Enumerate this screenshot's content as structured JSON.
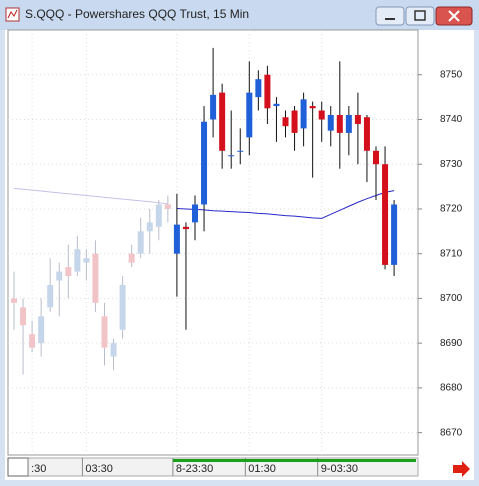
{
  "chart_data": {
    "type": "candlestick",
    "title": "S.QQQ - Powershares QQQ Trust, 15 Min",
    "categories": [
      null,
      null,
      ":30",
      null,
      null,
      null,
      null,
      null,
      "03:30",
      null,
      null,
      null,
      null,
      null,
      null,
      null,
      null,
      null,
      "8-23:30",
      null,
      null,
      null,
      null,
      null,
      null,
      null,
      "01:30",
      null,
      null,
      null,
      null,
      null,
      null,
      null,
      "9-03:30",
      null,
      null,
      null,
      null,
      null,
      null,
      null,
      null
    ],
    "ylim": [
      8665,
      8760
    ],
    "yticks": [
      8670,
      8680,
      8690,
      8700,
      8710,
      8720,
      8730,
      8740,
      8750
    ],
    "grid": true,
    "series": [
      {
        "color_up": "#c5d5ea",
        "color_down": "#f2c4c8",
        "wick_color": "#b8bccb",
        "open": [
          8700,
          8698,
          8692,
          8690,
          8698,
          8704,
          8707,
          8706,
          8708,
          8710,
          8696,
          8687,
          8693,
          8710,
          8710,
          8715,
          8716,
          8721,
          null,
          null,
          null,
          null,
          null,
          null,
          null,
          null,
          null,
          null,
          null,
          null,
          null,
          null,
          null,
          null,
          null,
          null,
          null,
          null,
          null,
          null,
          null,
          null,
          null
        ],
        "high": [
          8706,
          8700,
          8695,
          8700,
          8709,
          8708,
          8712,
          8714,
          8711,
          8713,
          8699,
          8691,
          8705,
          8712,
          8718,
          8720,
          8722,
          8723,
          null,
          null,
          null,
          null,
          null,
          null,
          null,
          null,
          null,
          null,
          null,
          null,
          null,
          null,
          null,
          null,
          null,
          null,
          null,
          null,
          null,
          null,
          null,
          null,
          null
        ],
        "low": [
          8693,
          8683,
          8688,
          8687,
          8697,
          8696,
          8700,
          8705,
          8704,
          8697,
          8685,
          8684,
          8691,
          8707,
          8709,
          8710,
          8713,
          8717,
          null,
          null,
          null,
          null,
          null,
          null,
          null,
          null,
          null,
          null,
          null,
          null,
          null,
          null,
          null,
          null,
          null,
          null,
          null,
          null,
          null,
          null,
          null,
          null,
          null
        ],
        "close": [
          8699,
          8694,
          8689,
          8696,
          8703,
          8706,
          8705,
          8711,
          8709,
          8699,
          8689,
          8690,
          8703,
          8708,
          8715,
          8717,
          8721,
          8720,
          null,
          null,
          null,
          null,
          null,
          null,
          null,
          null,
          null,
          null,
          null,
          null,
          null,
          null,
          null,
          null,
          null,
          null,
          null,
          null,
          null,
          null,
          null,
          null,
          null
        ]
      },
      {
        "color_up": "#1f5fd8",
        "color_down": "#d3101c",
        "wick_color": "#111111",
        "open": [
          null,
          null,
          null,
          null,
          null,
          null,
          null,
          null,
          null,
          null,
          null,
          null,
          null,
          null,
          null,
          null,
          null,
          null,
          8710,
          8716,
          8717,
          8721,
          8740,
          8746,
          8732,
          8733,
          8736,
          8745,
          8750,
          8743,
          8740.5,
          8742,
          8738,
          8743,
          8742,
          8737.5,
          8741,
          8737,
          8741,
          8740.5,
          8733,
          8730,
          8707.5
        ],
        "high": [
          null,
          null,
          null,
          null,
          null,
          null,
          null,
          null,
          null,
          null,
          null,
          null,
          null,
          null,
          null,
          null,
          null,
          null,
          8723.4,
          8717,
          8723,
          8743,
          8756,
          8748,
          8742,
          8738,
          8753,
          8751,
          8752,
          8745,
          8742,
          8743,
          8746,
          8744,
          8744,
          8743,
          8753,
          8743,
          8746,
          8741,
          8734,
          8734,
          8722
        ],
        "low": [
          null,
          null,
          null,
          null,
          null,
          null,
          null,
          null,
          null,
          null,
          null,
          null,
          null,
          null,
          null,
          null,
          null,
          null,
          8700.4,
          8693,
          8713,
          8715,
          8736,
          8729,
          8729,
          8730,
          8732,
          8742,
          8739,
          8735,
          8736,
          8733,
          8734,
          8727,
          8735,
          8734,
          8729,
          8732,
          8730,
          8726,
          8722,
          8706.5,
          8705
        ],
        "close": [
          null,
          null,
          null,
          null,
          null,
          null,
          null,
          null,
          null,
          null,
          null,
          null,
          null,
          null,
          null,
          null,
          null,
          null,
          8716.5,
          8715.5,
          8721,
          8739.5,
          8745.5,
          8733,
          8732,
          8733,
          8746,
          8749,
          8742.5,
          8743.5,
          8738.5,
          8737,
          8744.5,
          8742.5,
          8740,
          8741,
          8737,
          8741,
          8739,
          8733,
          8730,
          8707.5,
          8721
        ]
      }
    ],
    "lines": [
      {
        "color": "#c9bfe6",
        "values": [
          8724.6,
          8724.4,
          8724.2,
          8724.0,
          8723.8,
          8723.6,
          8723.4,
          8723.2,
          8723.0,
          8722.8,
          8722.6,
          8722.4,
          8722.2,
          8722.0,
          8721.8,
          8721.6,
          8721.4,
          8721.1,
          null,
          null,
          null,
          null,
          null,
          null,
          null,
          null,
          null,
          null,
          null,
          null,
          null,
          null,
          null,
          null,
          null,
          null,
          null,
          null,
          null,
          null,
          null,
          null,
          null
        ]
      },
      {
        "color": "#2828c8",
        "values": [
          null,
          null,
          null,
          null,
          null,
          null,
          null,
          null,
          null,
          null,
          null,
          null,
          null,
          null,
          null,
          null,
          null,
          null,
          8720.1,
          8720.0,
          8719.9,
          8719.8,
          8719.6,
          8719.5,
          8719.4,
          8719.3,
          8719.2,
          8719.0,
          8718.9,
          8718.7,
          8718.5,
          8718.4,
          8718.2,
          8718.0,
          8717.9,
          8718.8,
          8719.7,
          8720.6,
          8721.5,
          8722.3,
          8723.0,
          8723.7,
          8724.1
        ]
      }
    ]
  }
}
